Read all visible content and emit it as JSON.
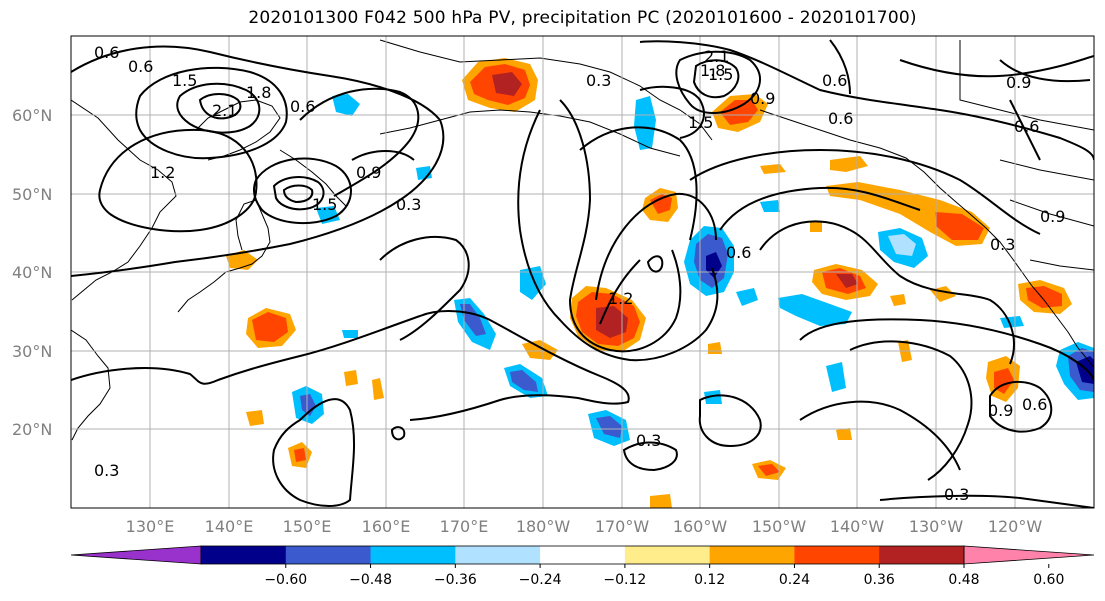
{
  "title": "2020101300 F042 500 hPa PV, precipitation PC (2020101600 - 2020101700)",
  "lat_labels": [
    "60°N",
    "50°N",
    "40°N",
    "30°N",
    "20°N"
  ],
  "lon_labels": [
    "130°E",
    "140°E",
    "150°E",
    "160°E",
    "170°E",
    "180°W",
    "170°W",
    "160°W",
    "150°W",
    "140°W",
    "130°W",
    "120°W"
  ],
  "colorbar": {
    "ticks": [
      "−0.60",
      "−0.48",
      "−0.36",
      "−0.24",
      "−0.12",
      "0.12",
      "0.24",
      "0.36",
      "0.48",
      "0.60"
    ],
    "colors": [
      "#9932cc",
      "#00008b",
      "#3a5acd",
      "#00bfff",
      "#b0e2ff",
      "#ffffff",
      "#ffec8b",
      "#ffa500",
      "#ff4500",
      "#b22222",
      "#ff82ab"
    ]
  },
  "pv_contour_labels": [
    "0.6",
    "0.6",
    "1.5",
    "2.1",
    "1.8",
    "0.6",
    "1.2",
    "0.9",
    "1.5",
    "0.3",
    "2.1",
    "1.8",
    "1.5",
    "0.3",
    "0.9",
    "1.5",
    "0.6",
    "0.6",
    "0.9",
    "0.6",
    "0.9",
    "0.3",
    "0.6",
    "1.2",
    "0.3",
    "0.9",
    "0.6",
    "0.3",
    "0.3"
  ]
}
